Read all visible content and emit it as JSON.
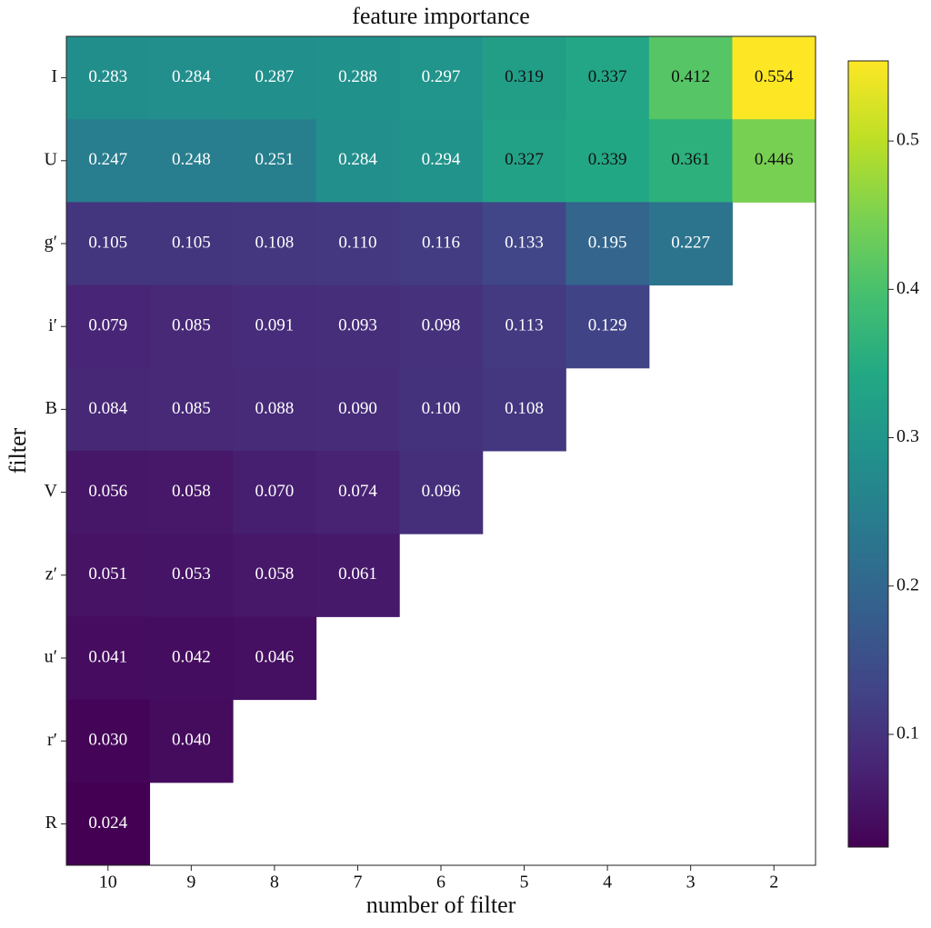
{
  "chart_data": {
    "type": "heatmap",
    "title": "feature importance",
    "x_label": "number of filter",
    "y_label": "filter",
    "x_categories": [
      "10",
      "9",
      "8",
      "7",
      "6",
      "5",
      "4",
      "3",
      "2"
    ],
    "y_categories": [
      "I",
      "U",
      "g′",
      "i′",
      "B",
      "V",
      "z′",
      "u′",
      "r′",
      "R"
    ],
    "values": [
      [
        0.283,
        0.284,
        0.287,
        0.288,
        0.297,
        0.319,
        0.337,
        0.412,
        0.554
      ],
      [
        0.247,
        0.248,
        0.251,
        0.284,
        0.294,
        0.327,
        0.339,
        0.361,
        0.446
      ],
      [
        0.105,
        0.105,
        0.108,
        0.11,
        0.116,
        0.133,
        0.195,
        0.227,
        null
      ],
      [
        0.079,
        0.085,
        0.091,
        0.093,
        0.098,
        0.113,
        0.129,
        null,
        null
      ],
      [
        0.084,
        0.085,
        0.088,
        0.09,
        0.1,
        0.108,
        null,
        null,
        null
      ],
      [
        0.056,
        0.058,
        0.07,
        0.074,
        0.096,
        null,
        null,
        null,
        null
      ],
      [
        0.051,
        0.053,
        0.058,
        0.061,
        null,
        null,
        null,
        null,
        null
      ],
      [
        0.041,
        0.042,
        0.046,
        null,
        null,
        null,
        null,
        null,
        null
      ],
      [
        0.03,
        0.04,
        null,
        null,
        null,
        null,
        null,
        null,
        null
      ],
      [
        0.024,
        null,
        null,
        null,
        null,
        null,
        null,
        null,
        null
      ]
    ],
    "value_labels": [
      [
        "0.283",
        "0.284",
        "0.287",
        "0.288",
        "0.297",
        "0.319",
        "0.337",
        "0.412",
        "0.554"
      ],
      [
        "0.247",
        "0.248",
        "0.251",
        "0.284",
        "0.294",
        "0.327",
        "0.339",
        "0.361",
        "0.446"
      ],
      [
        "0.105",
        "0.105",
        "0.108",
        "0.110",
        "0.116",
        "0.133",
        "0.195",
        "0.227",
        null
      ],
      [
        "0.079",
        "0.085",
        "0.091",
        "0.093",
        "0.098",
        "0.113",
        "0.129",
        null,
        null
      ],
      [
        "0.084",
        "0.085",
        "0.088",
        "0.090",
        "0.100",
        "0.108",
        null,
        null,
        null
      ],
      [
        "0.056",
        "0.058",
        "0.070",
        "0.074",
        "0.096",
        null,
        null,
        null,
        null
      ],
      [
        "0.051",
        "0.053",
        "0.058",
        "0.061",
        null,
        null,
        null,
        null,
        null
      ],
      [
        "0.041",
        "0.042",
        "0.046",
        null,
        null,
        null,
        null,
        null,
        null
      ],
      [
        "0.030",
        "0.040",
        null,
        null,
        null,
        null,
        null,
        null,
        null
      ],
      [
        "0.024",
        null,
        null,
        null,
        null,
        null,
        null,
        null,
        null
      ]
    ],
    "colormap": "viridis",
    "clim": [
      0.024,
      0.554
    ],
    "colorbar_ticks": [
      0.1,
      0.2,
      0.3,
      0.4,
      0.5
    ]
  }
}
